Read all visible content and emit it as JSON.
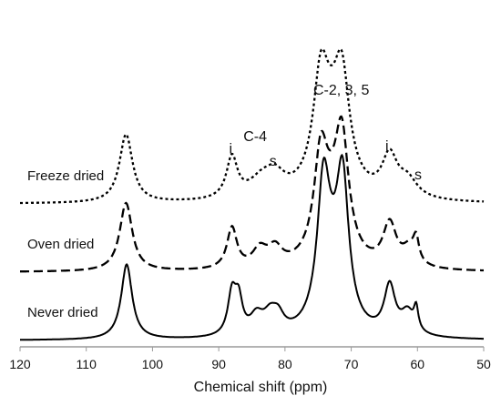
{
  "chart_data": {
    "type": "line",
    "title": "",
    "xlabel": "Chemical shift (ppm)",
    "ylabel": "",
    "xlim": [
      120,
      50
    ],
    "x_reversed": true,
    "x_ticks": [
      "120",
      "110",
      "100",
      "90",
      "80",
      "70",
      "60",
      "50"
    ],
    "grid": false,
    "legend": "none",
    "series": [
      {
        "name": "Freeze dried",
        "style": "dotted",
        "offset": 2,
        "peaks": [
          [
            104,
            1.0,
            1.2
          ],
          [
            88,
            0.6,
            1.0
          ],
          [
            83.5,
            0.26,
            2.4
          ],
          [
            81.5,
            0.26,
            1.8
          ],
          [
            74.6,
            1.36,
            1.35
          ],
          [
            71.4,
            1.36,
            1.35
          ],
          [
            73,
            0.85,
            2.6
          ],
          [
            64.2,
            0.58,
            1.4
          ],
          [
            61.5,
            0.26,
            1.8
          ]
        ]
      },
      {
        "name": "Oven dried",
        "style": "dashed",
        "offset": 1,
        "peaks": [
          [
            104,
            1.0,
            1.15
          ],
          [
            88,
            0.6,
            0.9
          ],
          [
            83.8,
            0.26,
            1.3
          ],
          [
            81.5,
            0.26,
            1.3
          ],
          [
            74.6,
            1.32,
            1.2
          ],
          [
            71.4,
            1.57,
            1.2
          ],
          [
            73,
            0.72,
            2.4
          ],
          [
            64.2,
            0.62,
            1.2
          ],
          [
            61.2,
            0.26,
            1.3
          ],
          [
            60.2,
            0.32,
            0.5
          ]
        ]
      },
      {
        "name": "Never dried",
        "style": "solid",
        "offset": 0,
        "peaks": [
          [
            103.9,
            1.1,
            1.0
          ],
          [
            88,
            0.6,
            0.75
          ],
          [
            87,
            0.48,
            0.7
          ],
          [
            84.3,
            0.26,
            1.2
          ],
          [
            82.2,
            0.28,
            1.3
          ],
          [
            81,
            0.2,
            1.0
          ],
          [
            74.2,
            1.8,
            1.1
          ],
          [
            71.3,
            1.97,
            1.1
          ],
          [
            73,
            0.75,
            2.2
          ],
          [
            64.2,
            0.7,
            1.0
          ],
          [
            61.5,
            0.32,
            1.2
          ],
          [
            60.2,
            0.32,
            0.4
          ]
        ]
      }
    ],
    "annotations": [
      {
        "text": "C-2, 3, 5",
        "x": 71.5,
        "y": 3.6
      },
      {
        "text": "C-4",
        "x": 84.5,
        "y": 2.92
      },
      {
        "text": "i",
        "x": 88.2,
        "y": 2.74
      },
      {
        "text": "s",
        "x": 81.8,
        "y": 2.56
      },
      {
        "text": "i",
        "x": 64.6,
        "y": 2.78
      },
      {
        "text": "s",
        "x": 59.9,
        "y": 2.36
      }
    ]
  }
}
